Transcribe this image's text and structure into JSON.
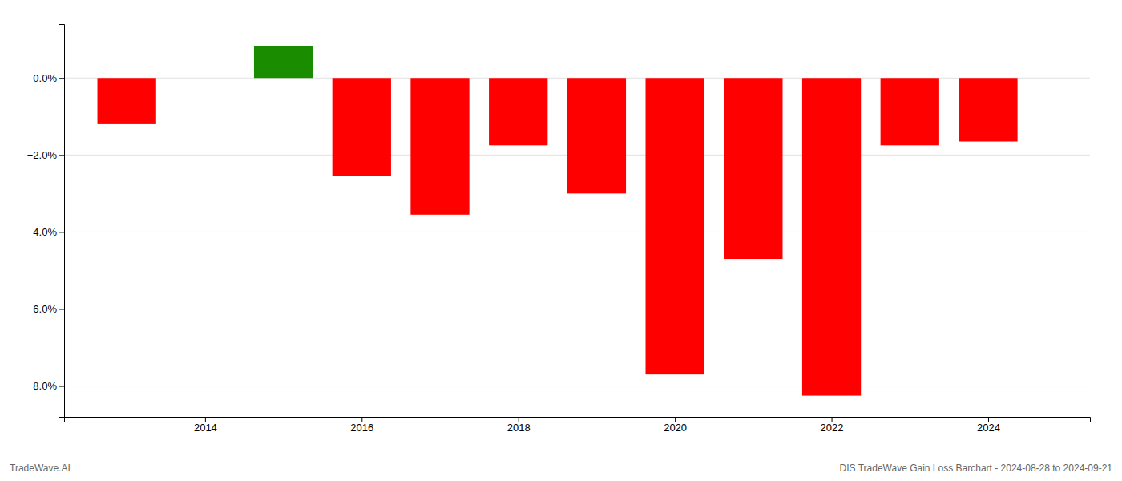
{
  "chart_data": {
    "type": "bar",
    "x": [
      2013,
      2015,
      2016,
      2017,
      2018,
      2019,
      2020,
      2021,
      2022,
      2023,
      2024
    ],
    "values": [
      -1.2,
      0.82,
      -2.55,
      -3.55,
      -1.75,
      -3.0,
      -7.7,
      -4.7,
      -8.25,
      -1.75,
      -1.65
    ],
    "colors": [
      "#ff0000",
      "#1a8c00",
      "#ff0000",
      "#ff0000",
      "#ff0000",
      "#ff0000",
      "#ff0000",
      "#ff0000",
      "#ff0000",
      "#ff0000",
      "#ff0000"
    ],
    "xlim": [
      2012.2,
      2025.3
    ],
    "xticks": [
      2014,
      2016,
      2018,
      2020,
      2022,
      2024
    ],
    "ylim": [
      -8.8,
      1.4
    ],
    "yticks": [
      {
        "value": 0.0,
        "label": "0.0%"
      },
      {
        "value": -2.0,
        "label": "−2.0%"
      },
      {
        "value": -4.0,
        "label": "−4.0%"
      },
      {
        "value": -6.0,
        "label": "−6.0%"
      },
      {
        "value": -8.0,
        "label": "−8.0%"
      }
    ],
    "grid": true,
    "annotations": [
      "TradeWave.AI",
      "DIS TradeWave Gain Loss Barchart - 2024-08-28 to 2024-09-21"
    ]
  }
}
